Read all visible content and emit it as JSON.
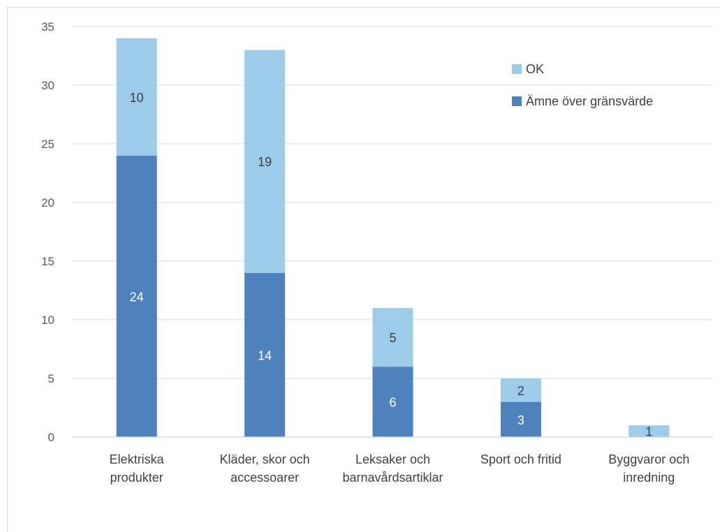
{
  "chart_data": {
    "type": "bar",
    "stacked": true,
    "categories": [
      [
        "Elektriska",
        "produkter"
      ],
      [
        "Kläder, skor och",
        "accessoarer"
      ],
      [
        "Leksaker och",
        "barnavårdsartiklar"
      ],
      [
        "Sport och fritid"
      ],
      [
        "Byggvaror och",
        "inredning"
      ]
    ],
    "series": [
      {
        "name": "Ämne över gränsvärde",
        "values": [
          24,
          14,
          6,
          3,
          0
        ],
        "color": "#4f81bd",
        "label_color": "#ffffff"
      },
      {
        "name": "OK",
        "values": [
          10,
          19,
          5,
          2,
          1
        ],
        "color": "#9dcbea",
        "label_color": "#404040"
      }
    ],
    "ylim": [
      0,
      35
    ],
    "yticks": [
      0,
      5,
      10,
      15,
      20,
      25,
      30,
      35
    ],
    "grid": true,
    "legend_position": "top-right",
    "legend_order": [
      "OK",
      "Ämne över gränsvärde"
    ],
    "title": "",
    "xlabel": "",
    "ylabel": ""
  }
}
